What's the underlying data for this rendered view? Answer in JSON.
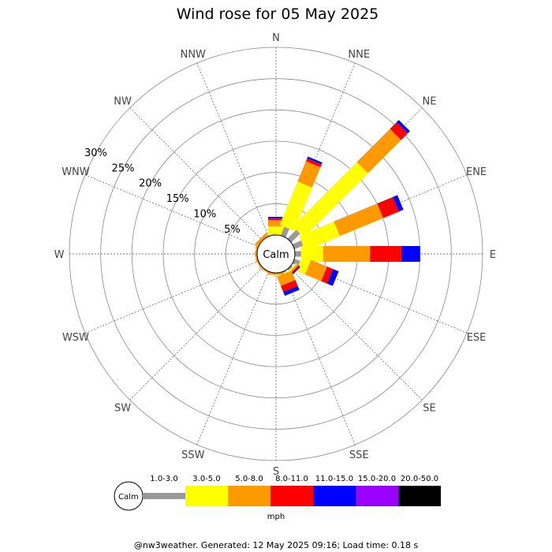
{
  "chart_data": {
    "type": "wind-rose",
    "title": "Wind rose for 05 May 2025",
    "directions": [
      "N",
      "NNE",
      "NE",
      "ENE",
      "E",
      "ESE",
      "SE",
      "SSE",
      "S",
      "SSW",
      "SW",
      "WSW",
      "W",
      "WNW",
      "NW",
      "NNW"
    ],
    "radial_ticks": [
      "5%",
      "10%",
      "15%",
      "20%",
      "25%",
      "30%"
    ],
    "radial_max": 30,
    "calm_label": "Calm",
    "speed_unit": "mph",
    "speed_bins": [
      {
        "label": "1.0-3.0",
        "color": "#999999"
      },
      {
        "label": "3.0-5.0",
        "color": "#ffff00"
      },
      {
        "label": "5.0-8.0",
        "color": "#ff9900"
      },
      {
        "label": "8.0-11.0",
        "color": "#ff0000"
      },
      {
        "label": "11.0-15.0",
        "color": "#0000ff"
      },
      {
        "label": "15.0-20.0",
        "color": "#9900ff"
      },
      {
        "label": "20.0-50.0",
        "color": "#000000"
      }
    ],
    "series": [
      {
        "direction": "N",
        "values": [
          0.0,
          1.4,
          1.0,
          0.3,
          0.2,
          0,
          0
        ]
      },
      {
        "direction": "NNE",
        "values": [
          1.5,
          7.5,
          3.5,
          0.5,
          0.3,
          0,
          0
        ]
      },
      {
        "direction": "NE",
        "values": [
          2.0,
          14.5,
          7.5,
          1.5,
          0.5,
          0,
          0
        ]
      },
      {
        "direction": "ENE",
        "values": [
          1.5,
          6.0,
          7.5,
          2.7,
          0.8,
          0,
          0
        ]
      },
      {
        "direction": "E",
        "values": [
          1.0,
          3.5,
          7.5,
          5.0,
          3.0,
          0,
          0
        ]
      },
      {
        "direction": "ESE",
        "values": [
          1.0,
          1.5,
          2.8,
          1.0,
          1.0,
          0,
          0
        ]
      },
      {
        "direction": "SE",
        "values": [
          0.3,
          0.2,
          0.3,
          0.2,
          0.2,
          0,
          0
        ]
      },
      {
        "direction": "SSE",
        "values": [
          0.2,
          0.2,
          1.6,
          1.0,
          0.7,
          0,
          0
        ]
      },
      {
        "direction": "S",
        "values": [
          0.0,
          0.0,
          0.3,
          0.0,
          0.0,
          0,
          0
        ]
      },
      {
        "direction": "SSW",
        "values": [
          0,
          0,
          0.2,
          0,
          0,
          0,
          0
        ]
      },
      {
        "direction": "SW",
        "values": [
          0,
          0,
          0.1,
          0,
          0,
          0,
          0
        ]
      },
      {
        "direction": "WSW",
        "values": [
          0,
          0,
          0.2,
          0,
          0,
          0,
          0
        ]
      },
      {
        "direction": "W",
        "values": [
          0,
          0,
          0.2,
          0,
          0,
          0,
          0
        ]
      },
      {
        "direction": "WNW",
        "values": [
          0,
          0,
          0.2,
          0,
          0,
          0,
          0
        ]
      },
      {
        "direction": "NW",
        "values": [
          0,
          0,
          0.5,
          0,
          0,
          0,
          0
        ]
      },
      {
        "direction": "NNW",
        "values": [
          0,
          0,
          0.1,
          0,
          0,
          0,
          0
        ]
      }
    ]
  },
  "footer": "@nw3weather. Generated: 12 May 2025 09:16; Load time: 0.18 s"
}
